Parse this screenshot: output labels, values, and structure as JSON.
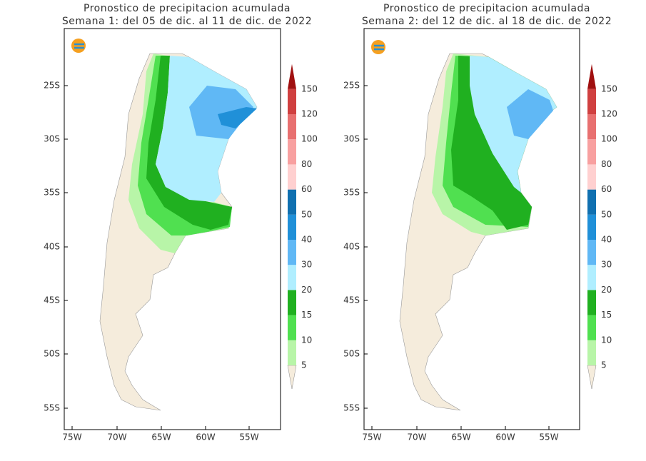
{
  "panels": [
    {
      "title_line1": "Pronostico de precipitacion acumulada",
      "title_line2": "Semana 1: del 05 de dic. al 11 de dic. de 2022",
      "y_axis_labels": [
        "25S",
        "30S",
        "35S",
        "40S",
        "45S",
        "50S",
        "55S"
      ],
      "x_axis_labels": [
        "75W",
        "70W",
        "65W",
        "60W",
        "55W"
      ]
    },
    {
      "title_line1": "Pronostico de precipitacion acumulada",
      "title_line2": "Semana 2: del 12 de dic. al 18 de dic. de 2022",
      "y_axis_labels": [
        "25S",
        "30S",
        "35S",
        "40S",
        "45S",
        "50S",
        "55S"
      ],
      "x_axis_labels": [
        "75W",
        "70W",
        "65W",
        "60W",
        "55W"
      ]
    }
  ],
  "colorbar": {
    "labels": [
      5,
      10,
      15,
      20,
      30,
      40,
      50,
      60,
      80,
      100,
      120,
      150
    ],
    "colors": [
      "#f5ecdc",
      "#b8f5a8",
      "#50e050",
      "#20b020",
      "#b0eeff",
      "#60b8f5",
      "#2090d8",
      "#1070b0",
      "#ffd0d0",
      "#f8a0a0",
      "#e87070",
      "#d04040",
      "#a01010"
    ]
  }
}
